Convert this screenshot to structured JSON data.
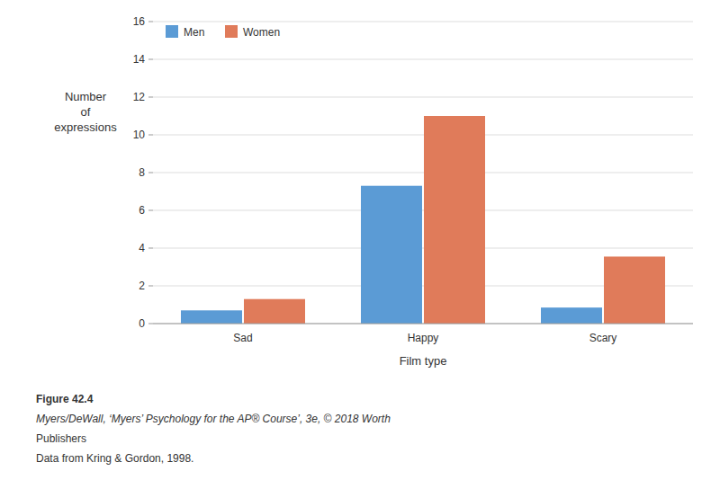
{
  "chart_data": {
    "type": "bar",
    "categories": [
      "Sad",
      "Happy",
      "Scary"
    ],
    "series": [
      {
        "name": "Men",
        "color": "#5b9bd5",
        "values": [
          0.7,
          7.3,
          0.85
        ]
      },
      {
        "name": "Women",
        "color": "#e07b5a",
        "values": [
          1.3,
          11.0,
          3.55
        ]
      }
    ],
    "xlabel": "Film type",
    "ylabel": "Number\nof\nexpressions",
    "ylim": [
      0,
      16
    ],
    "yticks": [
      0,
      2,
      4,
      6,
      8,
      10,
      12,
      14,
      16
    ],
    "grid": true,
    "legend": "upper left",
    "annotations": [
      "Figure 42.4",
      "Myers/DeWall, ‘Myers’ Psychology for the AP® Course’, 3e, © 2018 Worth",
      "Publishers",
      "Data from Kring & Gordon, 1998."
    ]
  }
}
